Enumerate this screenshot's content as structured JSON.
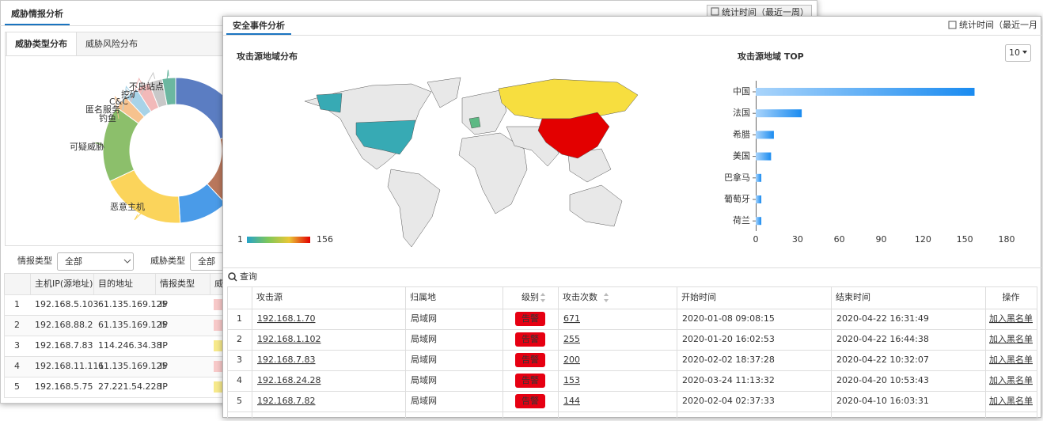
{
  "back_panel": {
    "title": "威胁情报分析",
    "period": "统计时间（最近一周）",
    "tabs": [
      "威胁类型分布",
      "威胁风险分布"
    ],
    "filters": [
      {
        "label": "情报类型",
        "value": "全部"
      },
      {
        "label": "威胁类型",
        "value": "全部"
      }
    ],
    "table": {
      "columns": [
        "主机IP(源地址)",
        "目的地址",
        "情报类型",
        "威"
      ],
      "rows": [
        [
          "1",
          "192.168.5.103",
          "61.135.169.125",
          "IP"
        ],
        [
          "2",
          "192.168.88.2",
          "61.135.169.125",
          "IP"
        ],
        [
          "3",
          "192.168.7.83",
          "114.246.34.38",
          "IP"
        ],
        [
          "4",
          "192.168.11.111",
          "61.135.169.125",
          "IP"
        ],
        [
          "5",
          "192.168.5.75",
          "27.221.54.228",
          "IP"
        ]
      ]
    }
  },
  "front_panel": {
    "title": "安全事件分析",
    "period": "统计时间（最近一月",
    "top_select": "10",
    "search": "查询",
    "table": {
      "columns": [
        "攻击源",
        "归属地",
        "级别",
        "攻击次数",
        "开始时间",
        "结束时间",
        "操作"
      ],
      "rows": [
        [
          "1",
          "192.168.1.70",
          "局域网",
          "告警",
          "671",
          "2020-01-08 09:08:15",
          "2020-04-22 16:31:49",
          "加入黑名单"
        ],
        [
          "2",
          "192.168.1.102",
          "局域网",
          "告警",
          "255",
          "2020-01-20 16:02:53",
          "2020-04-22 16:44:38",
          "加入黑名单"
        ],
        [
          "3",
          "192.168.7.83",
          "局域网",
          "告警",
          "200",
          "2020-02-02 18:37:28",
          "2020-04-22 10:32:07",
          "加入黑名单"
        ],
        [
          "4",
          "192.168.24.28",
          "局域网",
          "告警",
          "153",
          "2020-03-24 11:13:32",
          "2020-04-20 10:53:43",
          "加入黑名单"
        ],
        [
          "5",
          "192.168.7.82",
          "局域网",
          "告警",
          "144",
          "2020-02-04 02:37:33",
          "2020-04-10 16:03:31",
          "加入黑名单"
        ]
      ]
    }
  },
  "chart_data": [
    {
      "type": "pie",
      "categories": [
        null,
        null,
        null,
        "恶意主机",
        "可疑威胁",
        "钓鱼",
        "匿名服务",
        "C&C",
        "挖矿",
        "不良站点"
      ],
      "values": [
        21,
        17,
        11,
        19,
        17,
        3,
        3,
        3,
        3,
        3
      ],
      "colors": [
        "#5b7dc2",
        "#b9775c",
        "#4a9be8",
        "#fbd45b",
        "#8cbf6b",
        "#f6c28e",
        "#a8d3e8",
        "#f2b9b9",
        "#c8c8c8",
        "#6bb7a0"
      ]
    },
    {
      "type": "map",
      "title": "攻击源地域分布",
      "visual_map": [
        1,
        156
      ],
      "visual_colors": [
        "#26a3c9",
        "#7fc75a",
        "#eac736",
        "#e30000"
      ]
    },
    {
      "type": "bar",
      "orientation": "horizontal",
      "title": "攻击源地域 TOP",
      "categories": [
        "中国",
        "法国",
        "希腊",
        "美国",
        "巴拿马",
        "葡萄牙",
        "荷兰"
      ],
      "values": [
        157,
        33,
        13,
        11,
        4,
        4,
        4
      ],
      "xlim": [
        0,
        180
      ],
      "xticks": [
        0,
        30,
        60,
        90,
        120,
        150,
        180
      ],
      "color": "#1a8bf0"
    }
  ]
}
